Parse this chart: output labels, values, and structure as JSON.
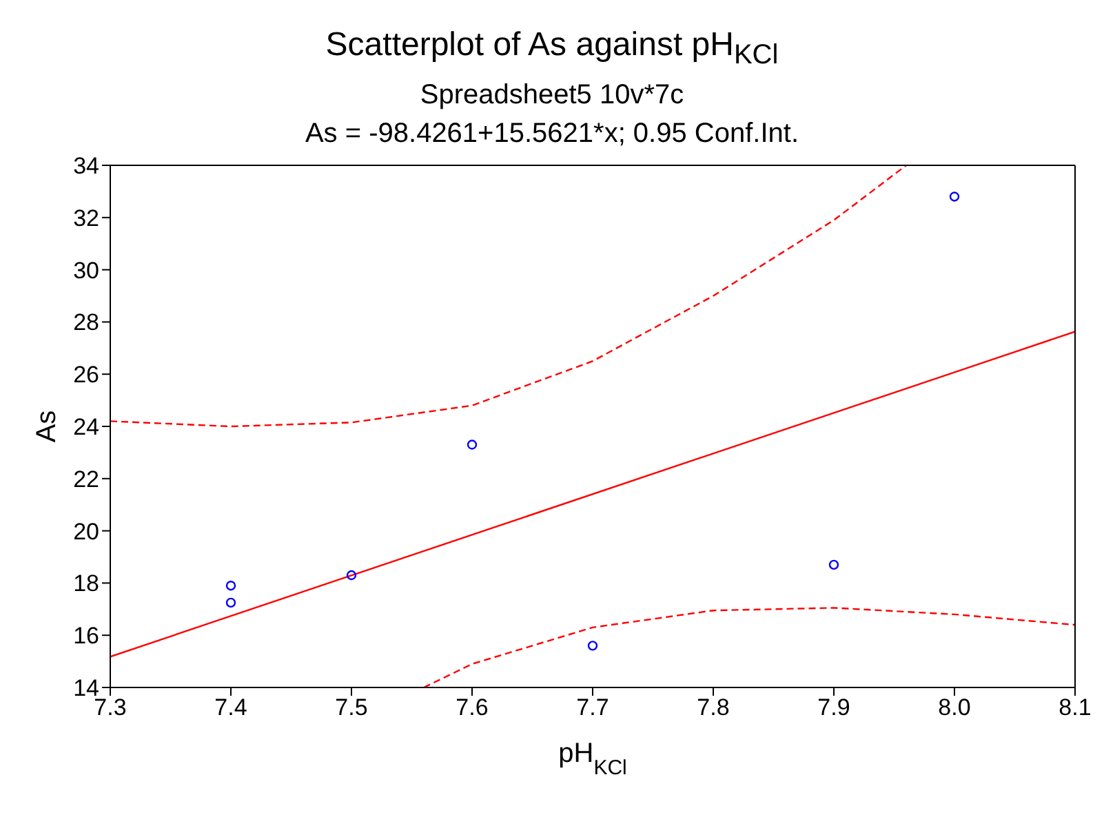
{
  "chart_data": {
    "type": "scatter",
    "title": "Scatterplot of As against pH$_{KCl}$",
    "subtitle": "Spreadsheet5 10v*7c",
    "annotations": [
      "As = -98.4261+15.5621*x; 0.95 Conf.Int."
    ],
    "xlabel": "pH$_{KCl}$",
    "ylabel": "As",
    "xlim": [
      7.3,
      8.1
    ],
    "xticks": [
      7.3,
      7.4,
      7.5,
      7.6,
      7.7,
      7.8,
      7.9,
      {
        "value": 8.0,
        "label": "8.0"
      },
      8.1
    ],
    "ylim": [
      14,
      34
    ],
    "yticks": [
      14,
      16,
      18,
      20,
      22,
      24,
      26,
      28,
      30,
      32,
      34
    ],
    "grid": false,
    "legend": false,
    "series": [
      {
        "marker": "circle",
        "color": "#0000ff",
        "x": [
          7.4,
          7.4,
          7.5,
          7.6,
          7.7,
          7.9,
          8.0
        ],
        "values": [
          17.9,
          17.25,
          18.3,
          23.3,
          15.6,
          18.7,
          32.8
        ]
      },
      {
        "type": "line",
        "marker": "none",
        "line_style": "solid",
        "color": "#ff0000",
        "x": [
          7.3,
          8.1
        ],
        "values": [
          15.18,
          27.63
        ]
      },
      {
        "type": "line",
        "marker": "none",
        "line_style": "dashed",
        "color": "#ff0000",
        "x": [
          7.3,
          7.4,
          7.5,
          7.6,
          7.7,
          7.8,
          7.9,
          7.96
        ],
        "values": [
          24.2,
          24.0,
          24.15,
          24.8,
          26.5,
          29.0,
          31.9,
          34.0
        ]
      },
      {
        "type": "line",
        "marker": "none",
        "line_style": "dashed",
        "color": "#ff0000",
        "x": [
          7.56,
          7.6,
          7.7,
          7.8,
          7.9,
          8.0,
          8.1
        ],
        "values": [
          14.0,
          14.9,
          16.3,
          16.95,
          17.05,
          16.8,
          16.4
        ]
      }
    ]
  }
}
